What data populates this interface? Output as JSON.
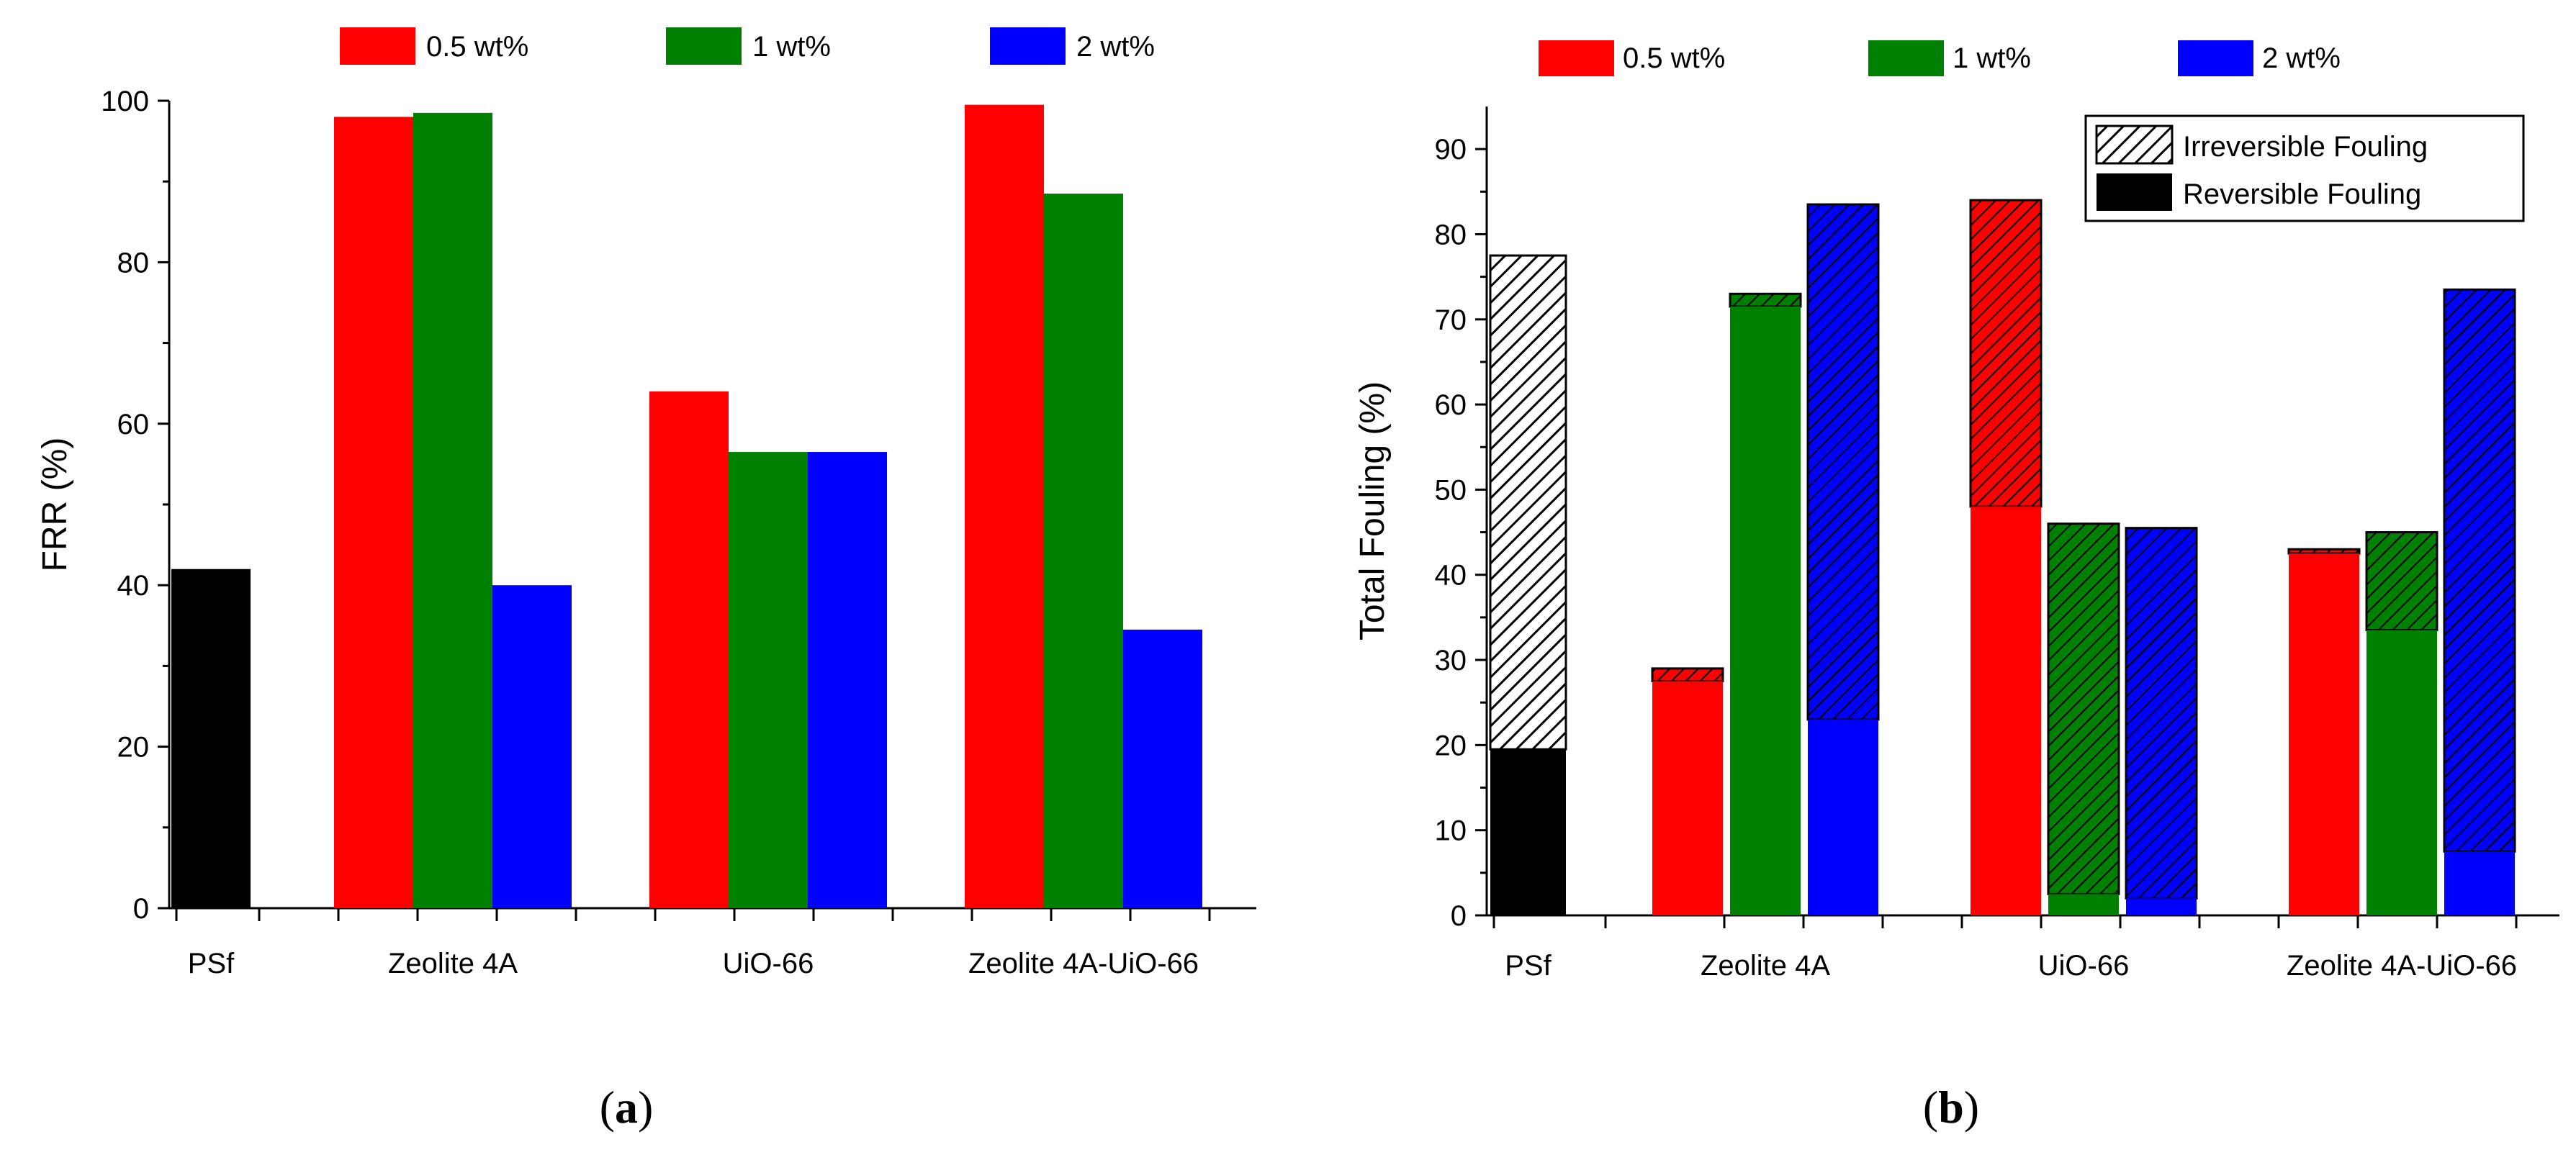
{
  "chart_data": [
    {
      "type": "bar",
      "caption": "a",
      "ylabel": "FRR (%)",
      "ylim": [
        0,
        100
      ],
      "yticks": [
        0,
        20,
        40,
        60,
        80,
        100
      ],
      "groups": [
        "PSf",
        "Zeolite 4A",
        "UiO-66",
        "Zeolite 4A-UiO-66"
      ],
      "legend": [
        "0.5 wt%",
        "1 wt%",
        "2 wt%"
      ],
      "colors": {
        "control": "#000000",
        "0.5 wt%": "#ff0000",
        "1 wt%": "#008000",
        "2 wt%": "#0000ff"
      },
      "control": {
        "name": "PSf",
        "value": 42
      },
      "series": [
        {
          "name": "0.5 wt%",
          "values": [
            98,
            64,
            99.5
          ]
        },
        {
          "name": "1 wt%",
          "values": [
            98.5,
            56.5,
            88.5
          ]
        },
        {
          "name": "2 wt%",
          "values": [
            40,
            56.5,
            34.5
          ]
        }
      ]
    },
    {
      "type": "bar",
      "stacked": true,
      "caption": "b",
      "ylabel": "Total Fouling (%)",
      "ylim": [
        0,
        95
      ],
      "yticks": [
        0,
        10,
        20,
        30,
        40,
        50,
        60,
        70,
        80,
        90
      ],
      "groups": [
        "PSf",
        "Zeolite 4A",
        "UiO-66",
        "Zeolite 4A-UiO-66"
      ],
      "legend": [
        "0.5  wt%",
        "1 wt%",
        "2 wt%"
      ],
      "pattern_legend": [
        "Irreversible Fouling",
        "Reversible Fouling"
      ],
      "colors": {
        "control": "#000000",
        "0.5 wt%": "#ff0000",
        "1 wt%": "#008000",
        "2 wt%": "#0000ff"
      },
      "control": {
        "name": "PSf",
        "reversible": 19.5,
        "total": 77.5
      },
      "series": [
        {
          "name": "0.5 wt%",
          "reversible": [
            27.5,
            48,
            42.5
          ],
          "total": [
            29,
            84,
            43
          ]
        },
        {
          "name": "1 wt%",
          "reversible": [
            71.5,
            2.5,
            33.5
          ],
          "total": [
            73,
            46,
            45
          ]
        },
        {
          "name": "2 wt%",
          "reversible": [
            23,
            2,
            7.5
          ],
          "total": [
            83.5,
            45.5,
            73.5
          ]
        }
      ]
    }
  ]
}
